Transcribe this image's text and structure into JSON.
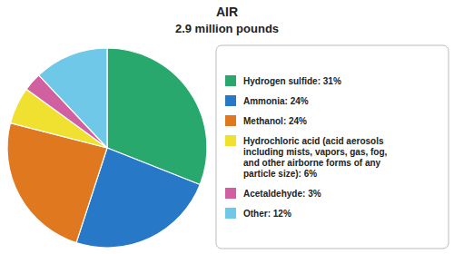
{
  "chart_data": {
    "type": "pie",
    "title": "AIR",
    "subtitle": "2.9 million pounds",
    "categories": [
      "Hydrogen sulfide: 31%",
      "Ammonia: 24%",
      "Methanol: 24%",
      "Hydrochloric acid (acid aerosols\nincluding mists, vapors, gas, fog,\nand other airborne forms of any\nparticle size): 6%",
      "Acetaldehyde: 3%",
      "Other: 12%"
    ],
    "values": [
      31,
      24,
      24,
      6,
      3,
      12
    ],
    "colors": [
      "#29a86e",
      "#2878c8",
      "#e07820",
      "#f0e030",
      "#d060a0",
      "#70c8e8"
    ],
    "legend": "right"
  }
}
